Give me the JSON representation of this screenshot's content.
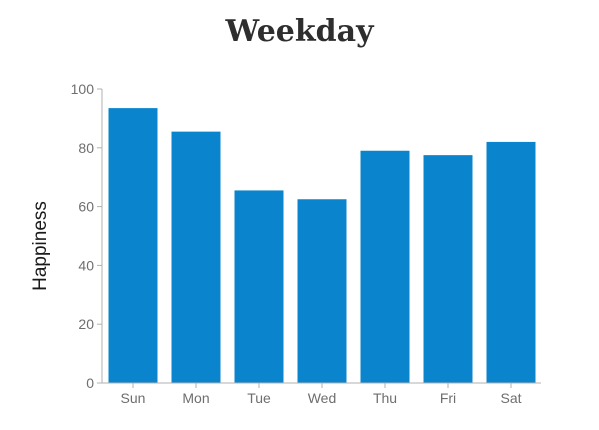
{
  "chart_data": {
    "type": "bar",
    "title": "Weekday",
    "xlabel": "",
    "ylabel": "Happiness",
    "categories": [
      "Sun",
      "Mon",
      "Tue",
      "Wed",
      "Thu",
      "Fri",
      "Sat"
    ],
    "values": [
      93.5,
      85.5,
      65.5,
      62.5,
      79,
      77.5,
      82
    ],
    "ylim": [
      0,
      100
    ],
    "yticks": [
      0,
      20,
      40,
      60,
      80,
      100
    ],
    "grid": false,
    "bar_color": "#0a84cc",
    "axis_color": "#b0b0b0"
  }
}
